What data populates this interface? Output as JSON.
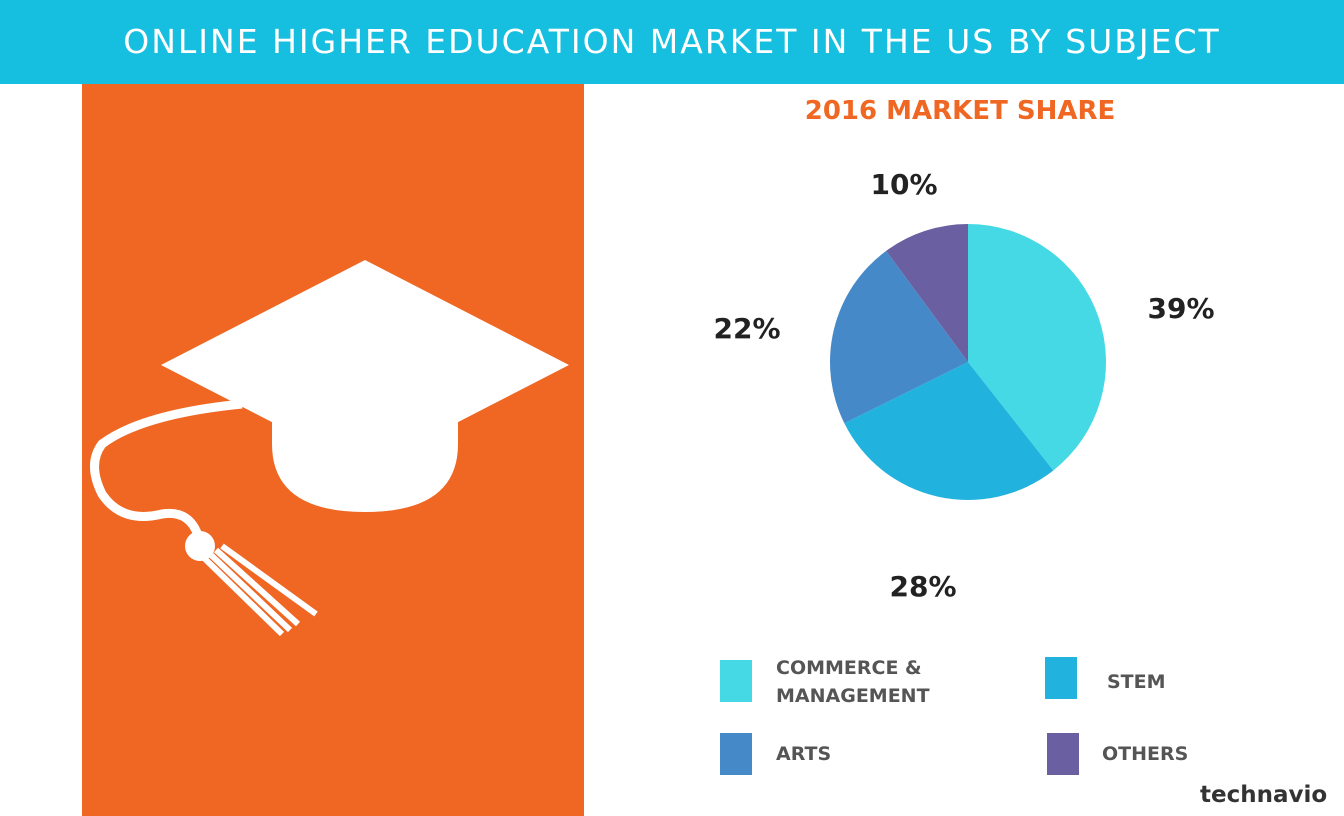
{
  "chart_data": {
    "type": "pie",
    "title": "ONLINE HIGHER EDUCATION MARKET IN THE US BY SUBJECT",
    "subtitle": "2016 MARKET SHARE",
    "categories": [
      "COMMERCE & MANAGEMENT",
      "STEM",
      "ARTS",
      "OTHERS"
    ],
    "values": [
      39,
      28,
      22,
      10
    ],
    "value_labels": [
      "39%",
      "28%",
      "22%",
      "10%"
    ],
    "colors": [
      "#45d9e6",
      "#22b2de",
      "#4689c8",
      "#6a5fa0"
    ]
  },
  "brand": "technavio"
}
